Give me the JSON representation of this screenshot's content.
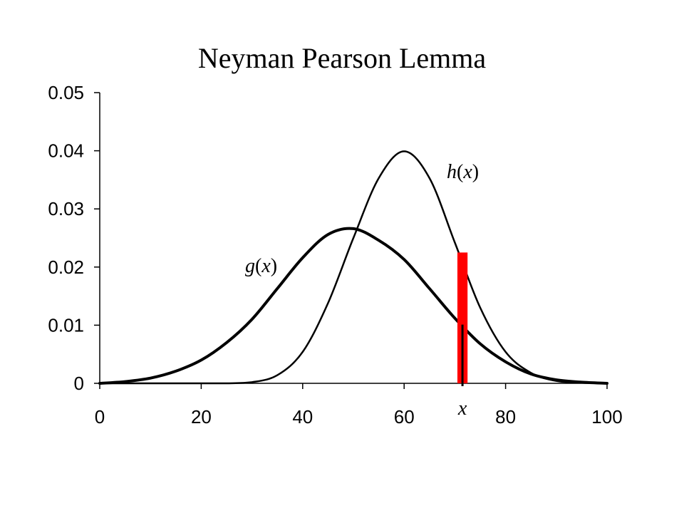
{
  "chart_data": {
    "type": "line",
    "title": "Neyman Pearson Lemma",
    "xlabel": "",
    "ylabel": "",
    "xlim": [
      0,
      100
    ],
    "ylim": [
      0,
      0.05
    ],
    "x_ticks": [
      0,
      20,
      40,
      60,
      80,
      100
    ],
    "x_tick_labels": [
      "0",
      "20",
      "40",
      "60",
      "80",
      "100"
    ],
    "y_ticks": [
      0,
      0.01,
      0.02,
      0.03,
      0.04,
      0.05
    ],
    "y_tick_labels": [
      "0",
      "0.01",
      "0.02",
      "0.03",
      "0.04",
      "0.05"
    ],
    "grid": false,
    "series": [
      {
        "name": "g(x)",
        "label_parts": [
          "g",
          "(",
          "x",
          ")"
        ],
        "color": "#000000",
        "x": [
          0,
          5,
          10,
          15,
          20,
          25,
          30,
          35,
          40,
          45,
          50,
          55,
          60,
          65,
          70,
          75,
          80,
          85,
          90,
          95,
          100
        ],
        "values": [
          0.0,
          0.0003,
          0.0009,
          0.0021,
          0.004,
          0.007,
          0.011,
          0.0163,
          0.0216,
          0.0256,
          0.0266,
          0.0246,
          0.0213,
          0.0163,
          0.0112,
          0.0068,
          0.0037,
          0.0016,
          0.0006,
          0.0002,
          0.0
        ]
      },
      {
        "name": "h(x)",
        "label_parts": [
          "h",
          "(",
          "x",
          ")"
        ],
        "color": "#000000",
        "x": [
          0,
          20,
          25,
          30,
          35,
          40,
          45,
          50,
          55,
          60,
          65,
          70,
          75,
          80,
          85,
          90,
          95,
          100
        ],
        "values": [
          0.0,
          0.0,
          0.0,
          0.0002,
          0.0014,
          0.0054,
          0.0138,
          0.025,
          0.0353,
          0.0399,
          0.0353,
          0.0242,
          0.013,
          0.0054,
          0.0018,
          0.0004,
          0.0001,
          0.0
        ]
      }
    ],
    "annotations": [
      {
        "kind": "region",
        "color": "#ff0000",
        "x_start": 70.5,
        "x_end": 72.5,
        "y_top": 0.0225
      },
      {
        "kind": "marker",
        "text": "x",
        "x": 71.5,
        "y_top": 0.0101
      }
    ]
  }
}
